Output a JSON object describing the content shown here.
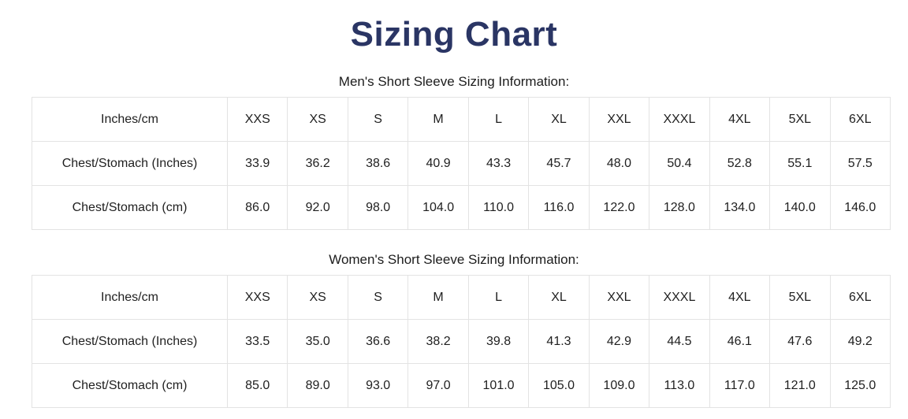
{
  "page": {
    "title": "Sizing Chart"
  },
  "colors": {
    "title": "#2a3564",
    "body_text": "#1f1f1f",
    "table_border_outer": "#c9c9c9",
    "table_border_inner": "#e3e3e3"
  },
  "sections": [
    {
      "id": "mens",
      "heading": "Men's Short Sleeve Sizing Information:",
      "table": {
        "header": [
          "Inches/cm",
          "XXS",
          "XS",
          "S",
          "M",
          "L",
          "XL",
          "XXL",
          "XXXL",
          "4XL",
          "5XL",
          "6XL"
        ],
        "rows": [
          {
            "label": "Chest/Stomach (Inches)",
            "values": [
              "33.9",
              "36.2",
              "38.6",
              "40.9",
              "43.3",
              "45.7",
              "48.0",
              "50.4",
              "52.8",
              "55.1",
              "57.5"
            ]
          },
          {
            "label": "Chest/Stomach (cm)",
            "values": [
              "86.0",
              "92.0",
              "98.0",
              "104.0",
              "110.0",
              "116.0",
              "122.0",
              "128.0",
              "134.0",
              "140.0",
              "146.0"
            ]
          }
        ]
      }
    },
    {
      "id": "womens",
      "heading": "Women's Short Sleeve Sizing Information:",
      "table": {
        "header": [
          "Inches/cm",
          "XXS",
          "XS",
          "S",
          "M",
          "L",
          "XL",
          "XXL",
          "XXXL",
          "4XL",
          "5XL",
          "6XL"
        ],
        "rows": [
          {
            "label": "Chest/Stomach (Inches)",
            "values": [
              "33.5",
              "35.0",
              "36.6",
              "38.2",
              "39.8",
              "41.3",
              "42.9",
              "44.5",
              "46.1",
              "47.6",
              "49.2"
            ]
          },
          {
            "label": "Chest/Stomach (cm)",
            "values": [
              "85.0",
              "89.0",
              "93.0",
              "97.0",
              "101.0",
              "105.0",
              "109.0",
              "113.0",
              "117.0",
              "121.0",
              "125.0"
            ]
          }
        ]
      }
    }
  ]
}
